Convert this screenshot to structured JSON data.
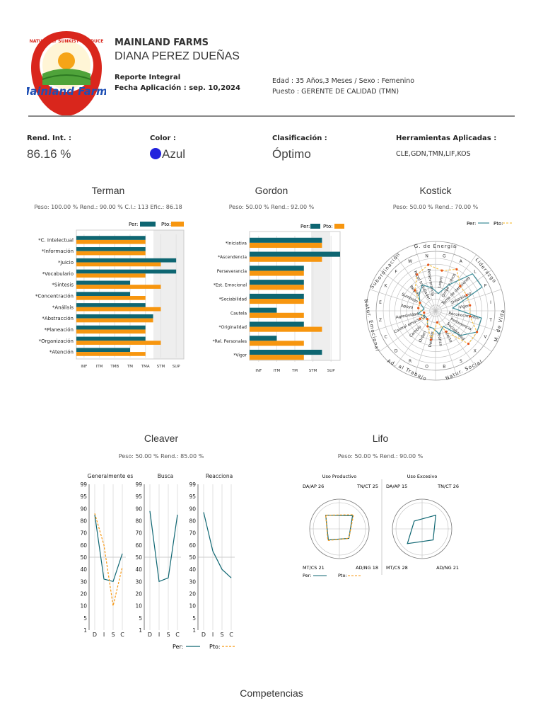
{
  "colors": {
    "per": "#0e6672",
    "pto": "#f7960f",
    "accent": "#2222dd",
    "grid": "#cccccc"
  },
  "logo": {
    "text": "Mainland Farms",
    "ring": "NATURALLY SUNKIST PRODUCE"
  },
  "header": {
    "company": "MAINLAND FARMS",
    "person": "DIANA PEREZ DUEÑAS",
    "report": "Reporte Integral",
    "fecha": "Fecha Aplicación : sep. 10,2024",
    "edad": "Edad : 35 Años,3 Meses / Sexo : Femenino",
    "puesto": "Puesto : GERENTE DE CALIDAD (TMN)"
  },
  "summary": {
    "rend_label": "Rend. Int. :",
    "rend_value": "86.16 %",
    "color_label": "Color :",
    "color_value": "Azul",
    "clas_label": "Clasificación :",
    "clas_value": "Óptimo",
    "herr_label": "Herramientas Aplicadas :",
    "herr_value": "CLE,GDN,TMN,LIF,KOS"
  },
  "terman": {
    "title": "Terman",
    "stats": "Peso: 100.00 % Rend.: 90.00 % C.I.: 113 Efic.: 86.18"
  },
  "gordon": {
    "title": "Gordon",
    "stats": "Peso: 50.00 % Rend.: 92.00 %"
  },
  "kostick": {
    "title": "Kostick",
    "stats": "Peso: 50.00 % Rend.: 70.00 %"
  },
  "cleaver": {
    "title": "Cleaver",
    "stats": "Peso: 50.00 % Rend.: 85.00 %"
  },
  "lifo": {
    "title": "Lifo",
    "stats": "Peso: 50.00 % Rend.: 90.00 %"
  },
  "footer": {
    "competencias": "Competencias"
  },
  "chart_data": [
    {
      "type": "bar",
      "name": "terman",
      "categories": [
        "*C. Intelectual",
        "*Información",
        "*Juicio",
        "*Vocabulario",
        "*Síntesis",
        "*Concentración",
        "*Análisis",
        "*Abstracción",
        "*Planeación",
        "*Organización",
        "*Atención"
      ],
      "xticks": [
        "INF",
        "ITM",
        "TMB",
        "TM",
        "TMA",
        "STM",
        "SUP"
      ],
      "series": [
        {
          "name": "Per:",
          "values": [
            4.5,
            4.5,
            6.5,
            6.5,
            3.5,
            3.5,
            4.5,
            5,
            4.5,
            4.5,
            3.5
          ]
        },
        {
          "name": "Pto:",
          "values": [
            4.5,
            4.5,
            5.5,
            4.5,
            5.5,
            4.5,
            5.5,
            5,
            4.5,
            5.5,
            4.5
          ]
        }
      ],
      "xlim": [
        0,
        7
      ]
    },
    {
      "type": "bar",
      "name": "gordon",
      "categories": [
        "*Iniciativa",
        "*Ascendencia",
        "Perseverancia",
        "*Est. Emocional",
        "*Sociabilidad",
        "Cautela",
        "*Originalidad",
        "*Rel. Personales",
        "*Vigor"
      ],
      "xticks": [
        "INF",
        "ITM",
        "TM",
        "STM",
        "SUP"
      ],
      "series": [
        {
          "name": "Per:",
          "values": [
            4.0,
            5.0,
            3.0,
            3.0,
            3.0,
            1.5,
            3.0,
            1.5,
            4.0
          ]
        },
        {
          "name": "Pto:",
          "values": [
            4.0,
            4.0,
            3.0,
            3.0,
            3.0,
            3.0,
            4.0,
            3.0,
            3.0
          ]
        }
      ],
      "xlim": [
        0,
        5
      ]
    },
    {
      "type": "radar",
      "name": "kostick",
      "groups": [
        "G. de Energía",
        "Liderazgo",
        "M. de Vida",
        "Natur. Social",
        "Ad. al Trabajo",
        "Natur. Emocional",
        "Subordinación"
      ],
      "letters": [
        "G",
        "A",
        "L",
        "P",
        "I",
        "T",
        "V",
        "X",
        "S",
        "B",
        "O",
        "R",
        "D",
        "C",
        "Z",
        "E",
        "K",
        "F",
        "W",
        "N"
      ],
      "items": [
        "Logro",
        "Dirige a otros",
        "Toma de decisiones",
        "Dinamismo",
        "Vigor",
        "Reconocimiento",
        "Pertenencia",
        "Sociabilidad",
        "Afecto",
        "Teórico",
        "Detalles",
        "Orden",
        "Cambio",
        "Control emocional",
        "Agresividad",
        "Apoyo",
        "Sumisión",
        "Reglas",
        "Papel trabajador",
        "Perseverancia"
      ],
      "legend": [
        "Per:",
        "Pto:"
      ],
      "series": [
        {
          "name": "Per:",
          "values": [
            3,
            5,
            9,
            9,
            3,
            8,
            8,
            6,
            3,
            4,
            3,
            3,
            2,
            2,
            3,
            2,
            3,
            4,
            5,
            4
          ]
        },
        {
          "name": "Pto:",
          "values": [
            7,
            8,
            6,
            6,
            6,
            6,
            8,
            8,
            4,
            2,
            5,
            3,
            2,
            3,
            2,
            3,
            3,
            5,
            7,
            8
          ]
        }
      ],
      "rlim": [
        0,
        9
      ]
    },
    {
      "type": "line",
      "name": "cleaver",
      "panels": [
        "Generalmente es",
        "Busca",
        "Reacciona"
      ],
      "categories": [
        "D",
        "I",
        "S",
        "C"
      ],
      "yticks": [
        1,
        5,
        10,
        20,
        30,
        40,
        50,
        60,
        70,
        80,
        90,
        95,
        99
      ],
      "series": [
        {
          "panel": 0,
          "name": "Per:",
          "values": [
            85,
            32,
            30,
            53
          ]
        },
        {
          "panel": 0,
          "name": "Pto:",
          "values": [
            86,
            60,
            10,
            42
          ]
        },
        {
          "panel": 1,
          "name": "Per:",
          "values": [
            88,
            30,
            33,
            85
          ]
        },
        {
          "panel": 2,
          "name": "Per:",
          "values": [
            87,
            55,
            40,
            33
          ]
        }
      ]
    },
    {
      "type": "radar",
      "name": "lifo",
      "panels": [
        "Uso Productivo",
        "Uso Excesivo"
      ],
      "labels_productivo": [
        "DA/AP 26",
        "TN/CT 25",
        "MT/CS 21",
        "AD/NG 18"
      ],
      "labels_excesivo": [
        "DA/AP 15",
        "TN/CT 26",
        "MT/CS 28",
        "AD/NG 21"
      ],
      "legend": [
        "Per:",
        "Pto:"
      ],
      "series": [
        {
          "panel": 0,
          "name": "Per:",
          "values": [
            26,
            25,
            18,
            21
          ]
        },
        {
          "panel": 0,
          "name": "Pto:",
          "values": [
            26,
            27,
            18,
            22
          ]
        },
        {
          "panel": 1,
          "name": "Per:",
          "values": [
            15,
            26,
            21,
            28
          ]
        }
      ]
    }
  ]
}
